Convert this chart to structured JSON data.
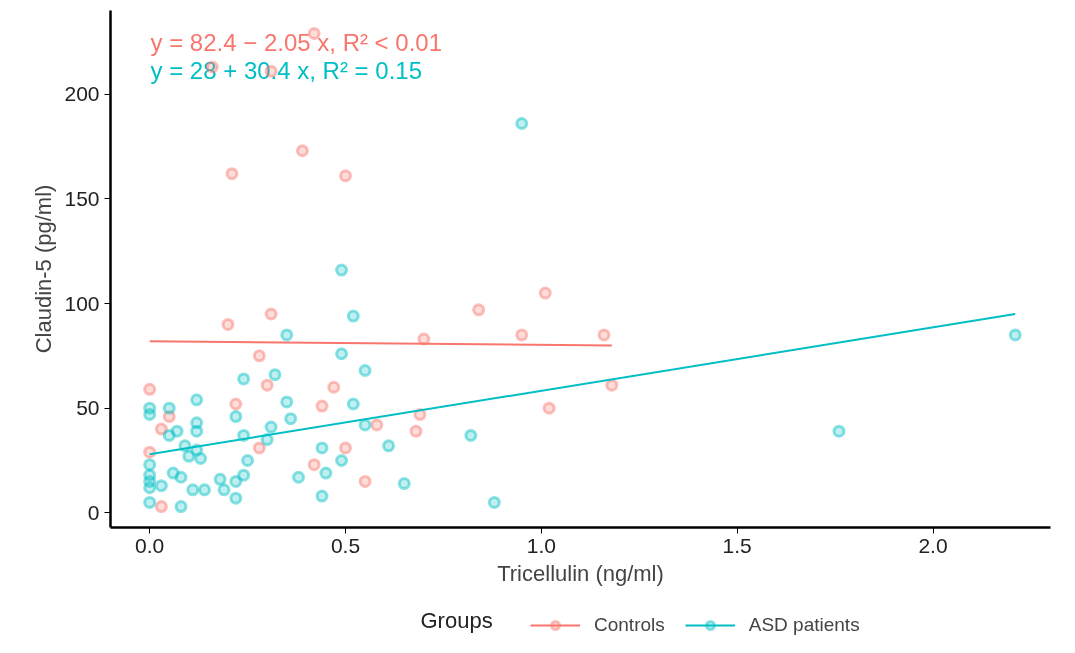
{
  "chart_data": {
    "type": "scatter",
    "xlabel": "Tricellulin (ng/ml)",
    "ylabel": "Claudin-5 (pg/ml)",
    "legend_title": "Groups",
    "legend": "bottom",
    "grid": false,
    "marker": "circle",
    "xlim": [
      -0.1,
      2.3
    ],
    "ylim": [
      -7,
      240
    ],
    "xticks": [
      {
        "value": 0,
        "label": "0.0"
      },
      {
        "value": 0.5,
        "label": "0.5"
      },
      {
        "value": 1,
        "label": "1.0"
      },
      {
        "value": 1.5,
        "label": "1.5"
      },
      {
        "value": 2,
        "label": "2.0"
      }
    ],
    "yticks": [
      0,
      50,
      100,
      150,
      200
    ],
    "annotations": [
      "y = 82.4 − 2.05 x, R² < 0.01",
      "y = 28 + 30.4 x, R² = 0.15"
    ],
    "series": [
      {
        "name": "Controls",
        "color": "#f8766d",
        "x": [
          0.42,
          0.16,
          0.31,
          0.39,
          0.21,
          0.5,
          0.2,
          0.31,
          0.84,
          1.01,
          0.95,
          1.16,
          0.7,
          0.28,
          0,
          0.3,
          0.47,
          1.18,
          0.05,
          0.03,
          0.22,
          0.44,
          0.69,
          0.68,
          1.02,
          0,
          0.28,
          0.42,
          0.5,
          0.58,
          0.55,
          0.03
        ],
        "values": [
          229,
          213,
          211,
          173,
          162,
          161,
          90,
          95,
          97,
          105,
          85,
          85,
          83,
          75,
          59,
          61,
          60,
          61,
          46,
          40,
          52,
          51,
          47,
          39,
          50,
          29,
          31,
          23,
          31,
          42,
          15,
          3
        ]
      },
      {
        "name": "ASD patients",
        "color": "#00bfc4",
        "x": [
          0.49,
          0.95,
          0.52,
          0.35,
          0.49,
          0.55,
          0.24,
          0.32,
          0,
          0,
          0.05,
          0.12,
          0.35,
          0.52,
          0.22,
          0.36,
          0.12,
          0.05,
          0.07,
          0.12,
          0.24,
          0.31,
          0.3,
          0.55,
          0.09,
          0.12,
          0.1,
          0.13,
          0.44,
          0.61,
          0,
          0.25,
          0.49,
          0,
          0,
          0.06,
          0.08,
          0.18,
          0.22,
          0.24,
          0.38,
          0.45,
          0,
          0.03,
          0.11,
          0.14,
          0.19,
          0.65,
          0,
          0.08,
          0.22,
          0.44,
          0.82,
          0.88,
          1.76,
          2.21
        ],
        "values": [
          116,
          186,
          94,
          85,
          76,
          68,
          64,
          66,
          50,
          47,
          50,
          54,
          53,
          52,
          46,
          45,
          43,
          37,
          39,
          39,
          37,
          41,
          35,
          42,
          32,
          30,
          27,
          26,
          31,
          32,
          23,
          25,
          25,
          18,
          15,
          19,
          17,
          16,
          15,
          18,
          17,
          19,
          12,
          13,
          11,
          11,
          11,
          14,
          5,
          3,
          7,
          8,
          37,
          5,
          39,
          85
        ]
      },
      {
        "type": "line",
        "marker": "none",
        "color": "#f8766d",
        "x": [
          0,
          1.18
        ],
        "values": [
          82,
          80
        ]
      },
      {
        "type": "line",
        "marker": "none",
        "color": "#00bfc4",
        "x": [
          0,
          2.21
        ],
        "values": [
          28,
          95
        ]
      }
    ]
  }
}
